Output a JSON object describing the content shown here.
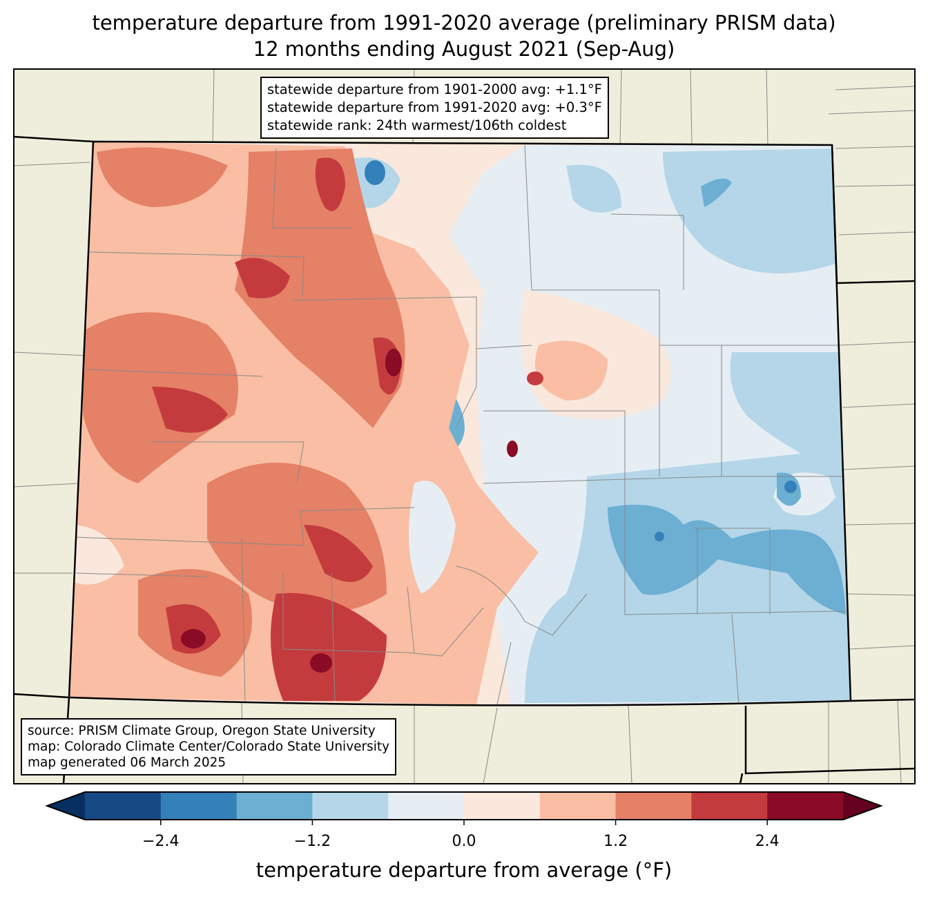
{
  "title": {
    "line1": "temperature departure from 1991-2020 average (preliminary PRISM data)",
    "line2": "12 months ending August 2021 (Sep-Aug)"
  },
  "stats_box": {
    "lines": [
      "statewide departure from 1901-2000 avg: +1.1°F",
      "statewide departure from 1991-2020 avg: +0.3°F",
      "statewide rank: 24th warmest/106th coldest"
    ]
  },
  "source_box": {
    "lines": [
      "source: PRISM Climate Group, Oregon State University",
      "map: Colorado Climate Center/Colorado State University",
      "map generated 06 March 2025"
    ]
  },
  "chart_data": {
    "type": "heatmap",
    "region": "Colorado",
    "colorbar": {
      "label": "temperature departure from average (°F)",
      "levels": [
        -3.0,
        -2.4,
        -1.8,
        -1.2,
        -0.6,
        0.0,
        0.6,
        1.2,
        1.8,
        2.4,
        3.0
      ],
      "colors": [
        "#174a85",
        "#3480ba",
        "#6cafd3",
        "#b4d6e8",
        "#e6eef4",
        "#fae8dd",
        "#f9bea4",
        "#e48166",
        "#c43b3d",
        "#8a0b26"
      ],
      "under_color": "#072f60",
      "over_color": "#66001f",
      "extend": "both",
      "ticks": [
        -2.4,
        -1.2,
        0.0,
        1.2,
        2.4
      ],
      "tick_labels": [
        "−2.4",
        "−1.2",
        "0.0",
        "1.2",
        "2.4"
      ]
    },
    "pattern": "warm departures (+0.6 to +3.0°F) over western/mountain Colorado; near-normal to cool (-0.6 to -1.8°F) over eastern plains"
  }
}
